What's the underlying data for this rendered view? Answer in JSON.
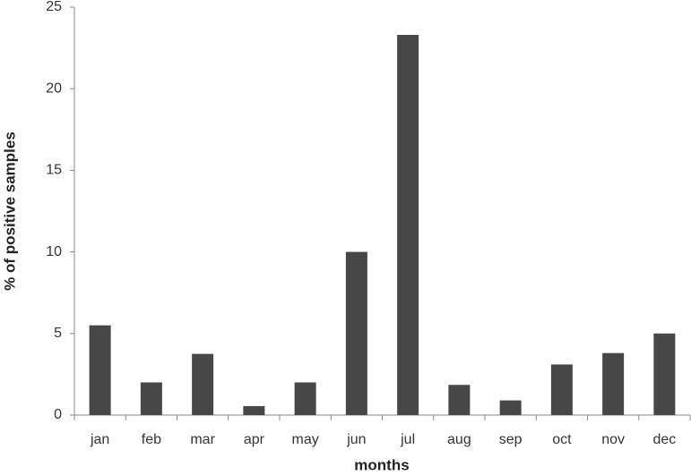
{
  "chart_data": {
    "type": "bar",
    "x_label": "months",
    "y_label": "% of positive samples",
    "categories": [
      "jan",
      "feb",
      "mar",
      "apr",
      "may",
      "jun",
      "jul",
      "aug",
      "sep",
      "oct",
      "nov",
      "dec"
    ],
    "values": [
      5.5,
      2.0,
      3.75,
      0.55,
      2.0,
      10.0,
      23.3,
      1.85,
      0.9,
      3.1,
      3.8,
      5.0
    ],
    "color": "#474747",
    "ylim": [
      0,
      25
    ],
    "yticks": [
      0,
      5,
      10,
      15,
      20,
      25
    ],
    "grid": false
  }
}
